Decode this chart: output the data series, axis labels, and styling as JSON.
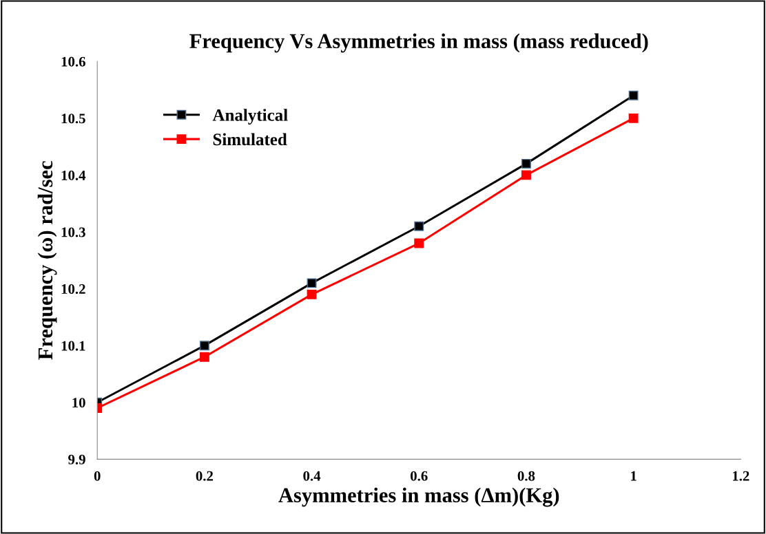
{
  "chart_data": {
    "type": "line",
    "title": "Frequency Vs Asymmetries in mass (mass reduced)",
    "xlabel": "Asymmetries in mass (Δm)(Kg)",
    "ylabel": "Frequency (ω) rad/sec",
    "x": [
      0,
      0.2,
      0.4,
      0.6,
      0.8,
      1
    ],
    "series": [
      {
        "name": "Analytical",
        "color": "#000000",
        "values": [
          10.0,
          10.1,
          10.21,
          10.31,
          10.42,
          10.54
        ]
      },
      {
        "name": "Simulated",
        "color": "#ff0000",
        "values": [
          9.99,
          10.08,
          10.19,
          10.28,
          10.4,
          10.5
        ]
      }
    ],
    "xlim": [
      0,
      1.2
    ],
    "xticks": [
      0,
      0.2,
      0.4,
      0.6,
      0.8,
      1,
      1.2
    ],
    "ylim": [
      9.9,
      10.6
    ],
    "yticks": [
      {
        "value": 9.9,
        "label": "9.9"
      },
      {
        "value": 10,
        "label": "10"
      },
      {
        "value": 10.1,
        "label": "10.1"
      },
      {
        "value": 10.2,
        "label": "10.2"
      },
      {
        "value": 10.3,
        "label": "10.3"
      },
      {
        "value": 10.4,
        "label": "10.4"
      },
      {
        "value": 10.5,
        "label": "10.5"
      },
      {
        "value": 10.6,
        "label": "10.6"
      }
    ],
    "grid": false,
    "legend": "top left",
    "marker": "square",
    "line_style": "solid"
  }
}
